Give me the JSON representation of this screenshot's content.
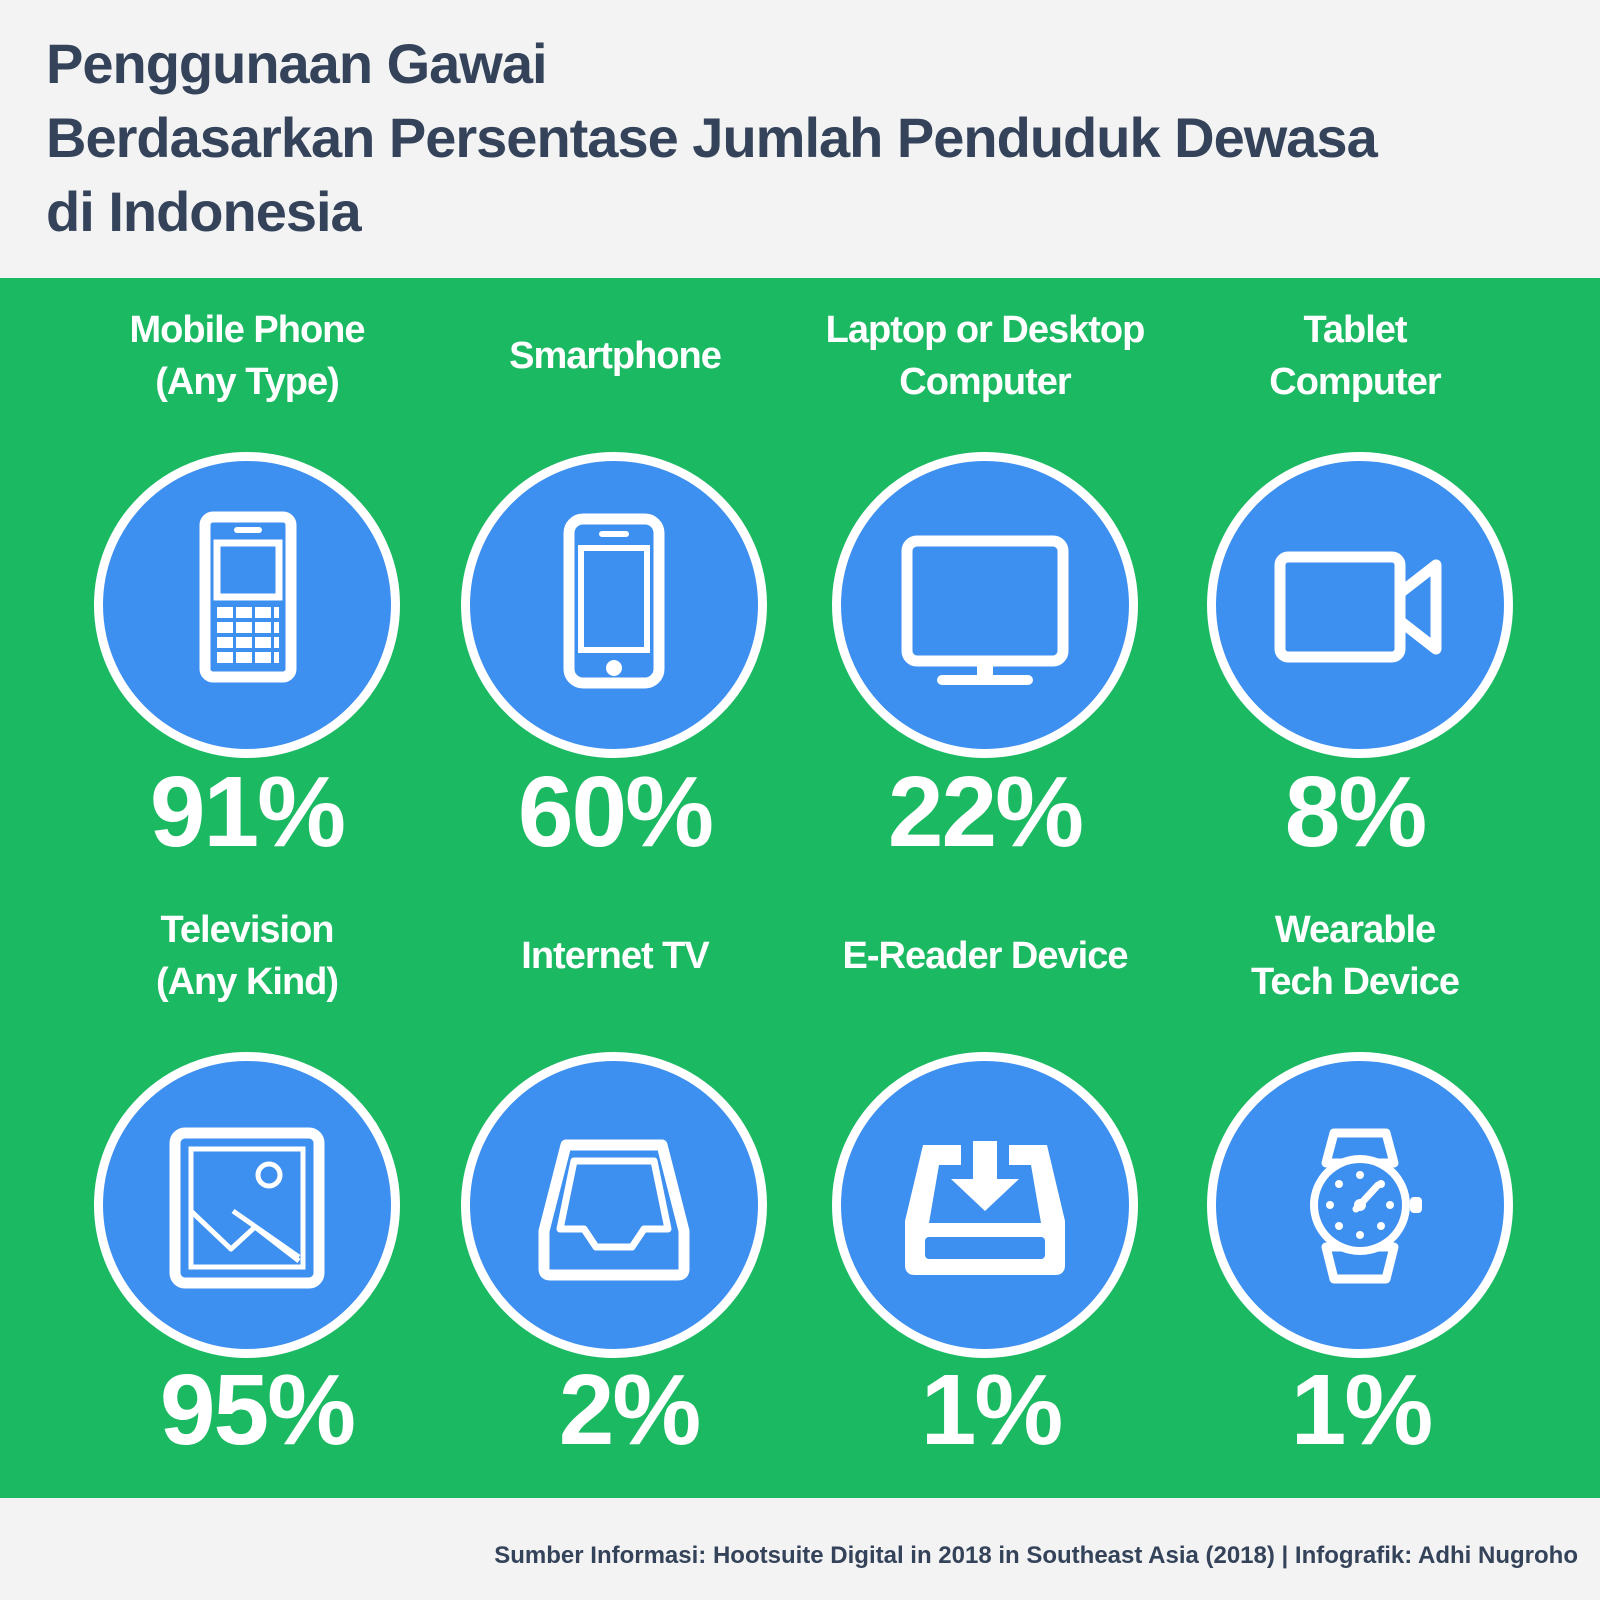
{
  "title": {
    "line1": "Penggunaan Gawai",
    "line2": "Berdasarkan Persentase Jumlah Penduduk Dewasa",
    "line3": "di Indonesia"
  },
  "colors": {
    "panel_green": "#1cb963",
    "circle_blue": "#3d8ff0",
    "title_text": "#34435a"
  },
  "devices": [
    {
      "label": "Mobile Phone\n(Any Type)",
      "percent": "91%",
      "icon": "feature-phone-icon"
    },
    {
      "label": "Smartphone",
      "percent": "60%",
      "icon": "smartphone-icon"
    },
    {
      "label": "Laptop or Desktop\nComputer",
      "percent": "22%",
      "icon": "monitor-icon"
    },
    {
      "label": "Tablet\nComputer",
      "percent": "8%",
      "icon": "video-camera-icon"
    },
    {
      "label": "Television\n(Any Kind)",
      "percent": "95%",
      "icon": "picture-frame-icon"
    },
    {
      "label": "Internet TV",
      "percent": "2%",
      "icon": "inbox-tray-icon"
    },
    {
      "label": "E-Reader Device",
      "percent": "1%",
      "icon": "download-tray-icon"
    },
    {
      "label": "Wearable\nTech Device",
      "percent": "1%",
      "icon": "wristwatch-icon"
    }
  ],
  "footer": {
    "source": "Sumber Informasi: Hootsuite Digital in 2018 in Southeast Asia (2018) | Infografik: Adhi Nugroho"
  }
}
